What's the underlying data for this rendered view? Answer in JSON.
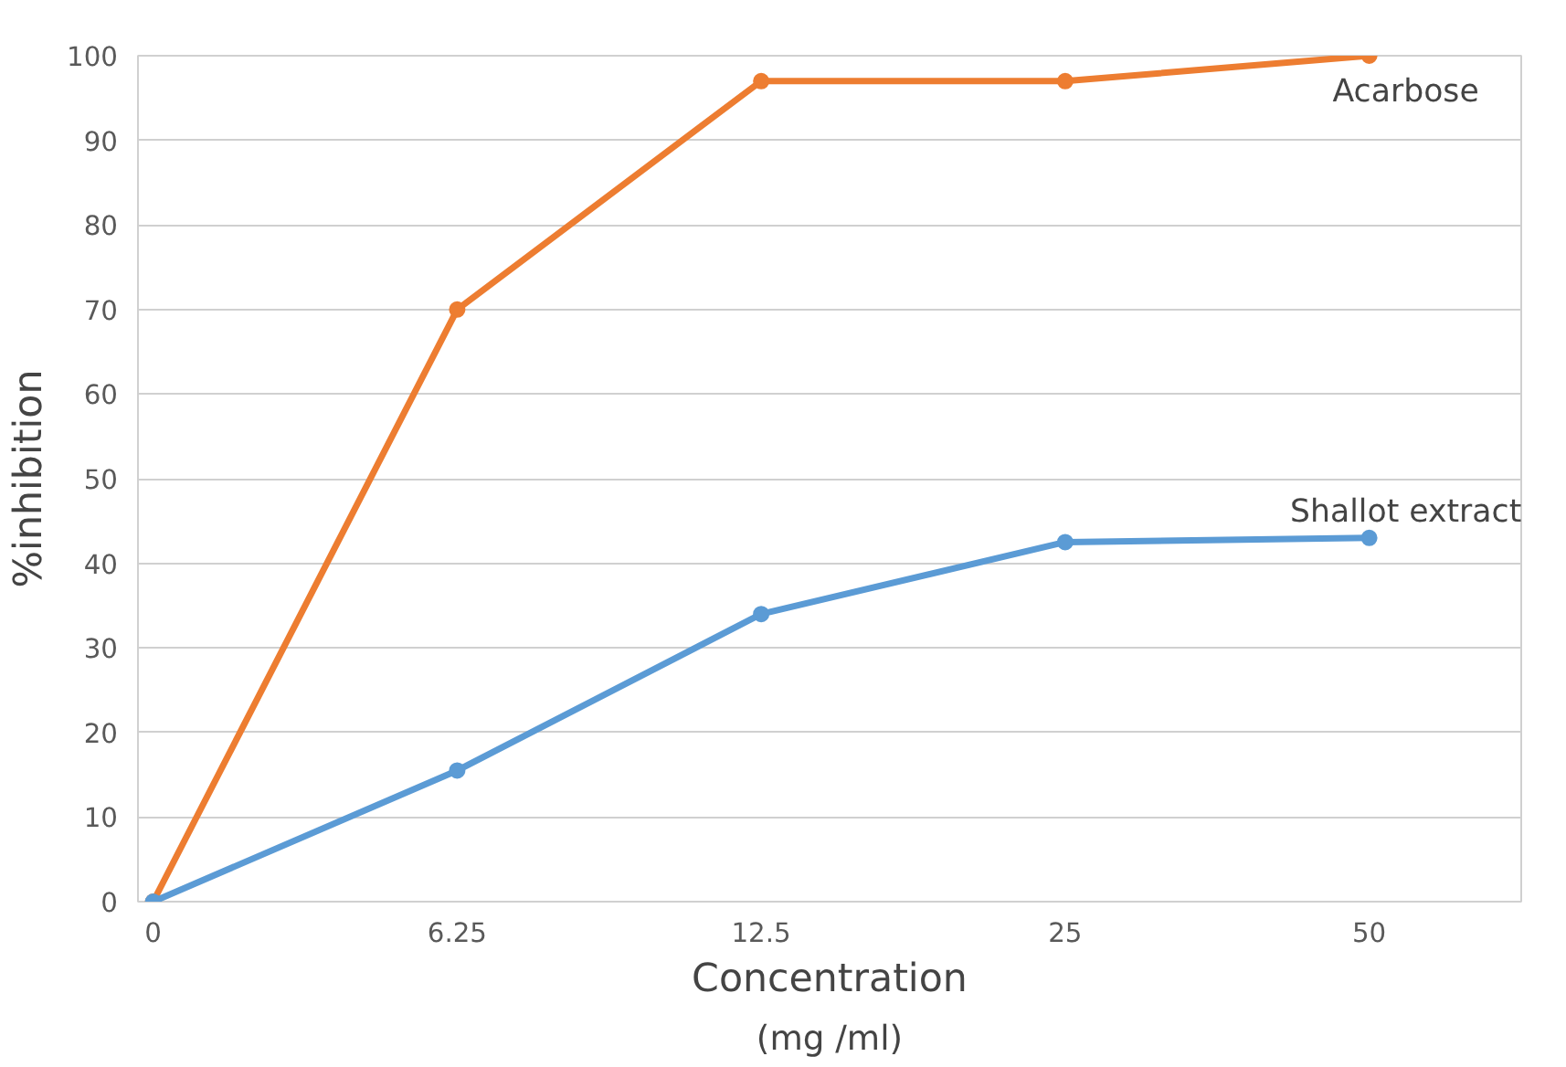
{
  "chart_data": {
    "type": "line",
    "xlabel": "Concentration",
    "ylabel": "%inhibition",
    "annotations": [
      "(mg /ml)"
    ],
    "categories": [
      "0",
      "6.25",
      "12.5",
      "25",
      "50"
    ],
    "series": [
      {
        "name": "Acarbose",
        "color": "#ed7d31",
        "values": [
          0,
          70,
          97,
          97,
          100
        ]
      },
      {
        "name": "Shallot extract",
        "color": "#5b9bd5",
        "values": [
          0,
          15.5,
          34,
          42.5,
          43
        ]
      }
    ],
    "ylim": [
      0,
      100
    ],
    "yticks": [
      0,
      10,
      20,
      30,
      40,
      50,
      60,
      70,
      80,
      90,
      100
    ],
    "grid": "y",
    "marker": "circle",
    "line_style": "solid",
    "legend": false
  }
}
